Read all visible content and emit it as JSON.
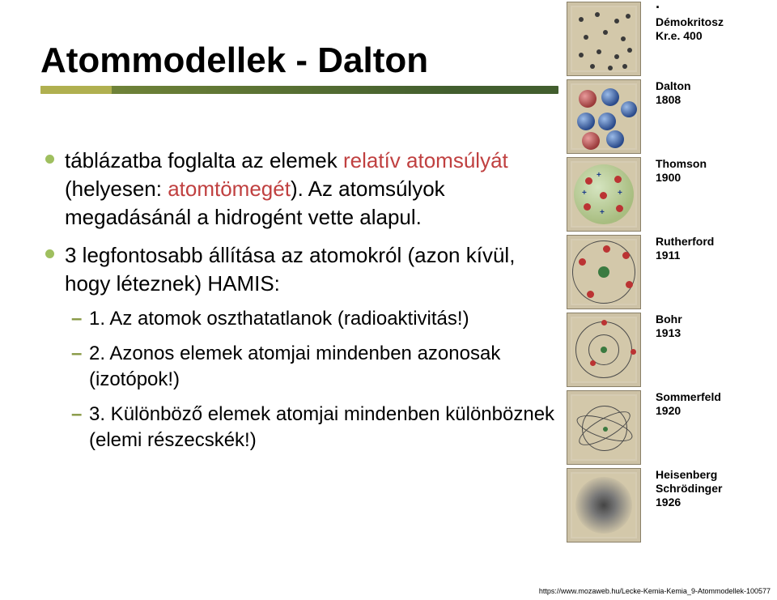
{
  "title": "Atommodellek - Dalton",
  "title_fontsize": 44,
  "body_fontsize": 26,
  "sub_fontsize": 24,
  "highlight_color": "#c04040",
  "bullets": [
    {
      "pre": "táblázatba foglalta az elemek ",
      "hi1": "relatív atomsúlyát",
      "mid": " (helyesen: ",
      "hi2": "atomtömegét",
      "post": "). Az atomsúlyok megadásánál a hidrogént vette alapul."
    },
    {
      "pre": "3 legfontosabb állítása az atomokról (azon kívül, hogy léteznek) HAMIS:"
    }
  ],
  "subpoints": [
    "1. Az atomok oszthatatlanok (radioaktivitás!)",
    "2. Azonos elemek atomjai mindenben azonosak (izotópok!)",
    "3. Különböző elemek atomjai mindenben különböznek (elemi részecskék!)"
  ],
  "models": [
    {
      "name": "Démokritosz",
      "year": "Kr.e. 400"
    },
    {
      "name": "Dalton",
      "year": "1808"
    },
    {
      "name": "Thomson",
      "year": "1900"
    },
    {
      "name": "Rutherford",
      "year": "1911"
    },
    {
      "name": "Bohr",
      "year": "1913"
    },
    {
      "name": "Sommerfeld",
      "year": "1920"
    },
    {
      "name": "Heisenberg Schrödinger",
      "year": "1926"
    }
  ],
  "model_label_fontsize": 14,
  "footer_url": "https://www.mozaweb.hu/Lecke-Kemia-Kemia_9-Atommodellek-100577",
  "footer_fontsize": 9
}
